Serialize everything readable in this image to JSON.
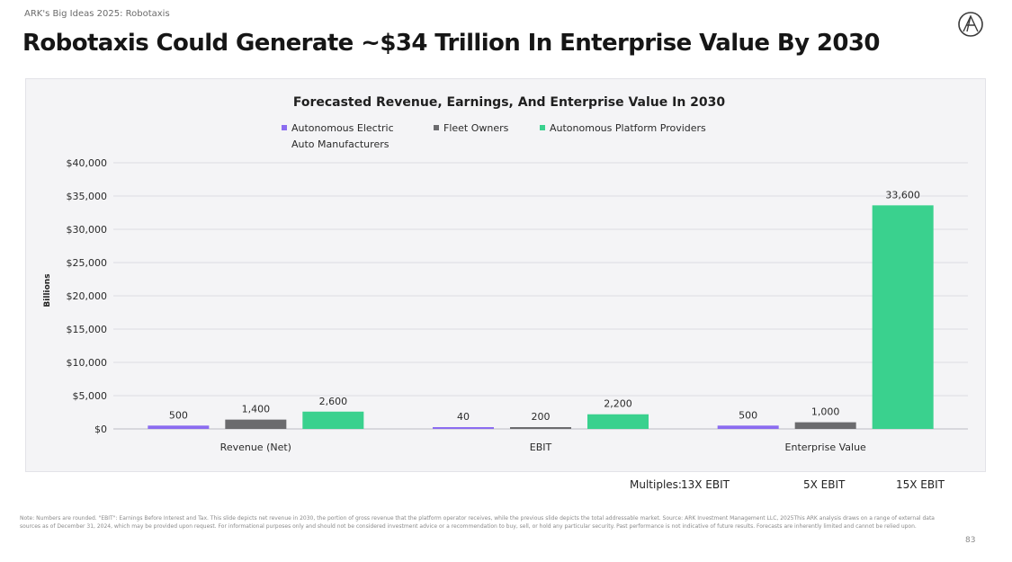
{
  "slide": {
    "kicker": "ARK's Big Ideas 2025: Robotaxis",
    "headline": "Robotaxis Could Generate ~$34 Trillion In Enterprise Value By 2030",
    "logo_icon": "ark-logo-icon",
    "page_number": "83",
    "footnote": "Note: Numbers are rounded. \"EBIT\": Earnings Before Interest and Tax. This slide depicts net revenue in 2030, the portion of gross revenue that the platform operator receives, while the previous slide depicts the total addressable market. Source: ARK Investment Management LLC, 2025This ARK analysis draws on a range of external data sources as of December 31, 2024, which may be provided upon request. For informational purposes only and should not be considered investment advice or a recommendation to buy, sell, or hold any particular security. Past performance is not indicative of future results. Forecasts are inherently limited and cannot be relied upon."
  },
  "multiples": {
    "label": "Multiples:",
    "values": [
      "13X EBIT",
      "5X EBIT",
      "15X EBIT"
    ]
  },
  "chart_data": {
    "type": "bar",
    "title": "Forecasted Revenue, Earnings, And Enterprise Value In 2030",
    "xlabel": "",
    "ylabel": "Billions",
    "ylim": [
      0,
      40000
    ],
    "yticks": [
      0,
      5000,
      10000,
      15000,
      20000,
      25000,
      30000,
      35000,
      40000
    ],
    "ytick_labels": [
      "$0",
      "$5,000",
      "$10,000",
      "$15,000",
      "$20,000",
      "$25,000",
      "$30,000",
      "$35,000",
      "$40,000"
    ],
    "grid": true,
    "legend_position": "top-left",
    "categories": [
      "Revenue (Net)",
      "EBIT",
      "Enterprise Value"
    ],
    "series": [
      {
        "name": "Autonomous Electric Auto Manufacturers",
        "legend_lines": [
          "Autonomous Electric",
          "Auto Manufacturers"
        ],
        "color": "#8b6cf0",
        "values": [
          500,
          40,
          500
        ],
        "labels": [
          "500",
          "40",
          "500"
        ]
      },
      {
        "name": "Fleet Owners",
        "legend_lines": [
          "Fleet Owners"
        ],
        "color": "#6b6b6e",
        "values": [
          1400,
          200,
          1000
        ],
        "labels": [
          "1,400",
          "200",
          "1,000"
        ]
      },
      {
        "name": "Autonomous Platform Providers",
        "legend_lines": [
          "Autonomous Platform Providers"
        ],
        "color": "#3ad18e",
        "values": [
          2600,
          2200,
          33600
        ],
        "labels": [
          "2,600",
          "2,200",
          "33,600"
        ]
      }
    ]
  }
}
